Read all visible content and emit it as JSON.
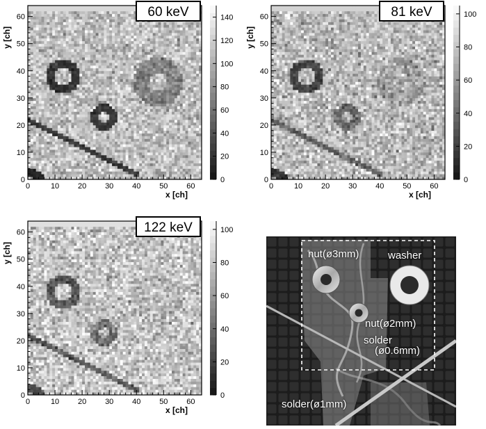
{
  "chart_data": [
    {
      "type": "heatmap",
      "energy_label": "60 keV",
      "xlabel": "x [ch]",
      "ylabel": "y [ch]",
      "xlim": [
        0,
        64
      ],
      "ylim": [
        0,
        64
      ],
      "x_ticks": [
        "0",
        "10",
        "20",
        "30",
        "40",
        "50",
        "60"
      ],
      "y_ticks": [
        "0",
        "10",
        "20",
        "30",
        "40",
        "50",
        "60"
      ],
      "colorbar_ticks": [
        "0",
        "20",
        "40",
        "60",
        "80",
        "100",
        "120",
        "140"
      ],
      "z_range": [
        0,
        150
      ],
      "background_level": 110,
      "features": [
        {
          "name": "nut(ø3mm)",
          "shape": "ring",
          "center": [
            13,
            38
          ],
          "inner_radius": 3,
          "outer_radius": 6.5,
          "level": 22
        },
        {
          "name": "nut(ø2mm)",
          "shape": "ring",
          "center": [
            28,
            23
          ],
          "inner_radius": 1.8,
          "outer_radius": 4.8,
          "level": 25
        },
        {
          "name": "washer",
          "shape": "ring",
          "center": [
            48,
            36
          ],
          "inner_radius": 3.5,
          "outer_radius": 9,
          "level": 70
        },
        {
          "name": "solder(ø0.6mm)",
          "shape": "line",
          "from": [
            0,
            22
          ],
          "to": [
            40,
            2
          ],
          "width": 1,
          "level": 25
        },
        {
          "name": "corner",
          "shape": "line",
          "from": [
            0,
            3
          ],
          "to": [
            5,
            1
          ],
          "width": 1.5,
          "level": 10
        }
      ]
    },
    {
      "type": "heatmap",
      "energy_label": "81 keV",
      "xlabel": "x [ch]",
      "ylabel": "y [ch]",
      "xlim": [
        0,
        64
      ],
      "ylim": [
        0,
        64
      ],
      "x_ticks": [
        "0",
        "10",
        "20",
        "30",
        "40",
        "50",
        "60"
      ],
      "y_ticks": [
        "0",
        "10",
        "20",
        "30",
        "40",
        "50",
        "60"
      ],
      "colorbar_ticks": [
        "0",
        "20",
        "40",
        "60",
        "80",
        "100"
      ],
      "z_range": [
        0,
        105
      ],
      "background_level": 75,
      "features": [
        {
          "name": "nut(ø3mm)",
          "shape": "ring",
          "center": [
            13,
            38
          ],
          "inner_radius": 3,
          "outer_radius": 6.5,
          "level": 22
        },
        {
          "name": "nut(ø2mm)",
          "shape": "ring",
          "center": [
            28,
            23
          ],
          "inner_radius": 1.8,
          "outer_radius": 4.8,
          "level": 40
        },
        {
          "name": "washer",
          "shape": "ring",
          "center": [
            48,
            36
          ],
          "inner_radius": 3.5,
          "outer_radius": 9,
          "level": 62
        },
        {
          "name": "solder(ø0.6mm)",
          "shape": "line",
          "from": [
            0,
            22
          ],
          "to": [
            40,
            2
          ],
          "width": 1,
          "level": 35
        },
        {
          "name": "corner",
          "shape": "line",
          "from": [
            0,
            3
          ],
          "to": [
            5,
            1
          ],
          "width": 1.5,
          "level": 15
        }
      ]
    },
    {
      "type": "heatmap",
      "energy_label": "122 keV",
      "xlabel": "x [ch]",
      "ylabel": "y [ch]",
      "xlim": [
        0,
        64
      ],
      "ylim": [
        0,
        64
      ],
      "x_ticks": [
        "0",
        "10",
        "20",
        "30",
        "40",
        "50",
        "60"
      ],
      "y_ticks": [
        "0",
        "10",
        "20",
        "30",
        "40",
        "50",
        "60"
      ],
      "colorbar_ticks": [
        "0",
        "20",
        "40",
        "60",
        "80",
        "100"
      ],
      "z_range": [
        0,
        105
      ],
      "background_level": 80,
      "features": [
        {
          "name": "nut(ø3mm)",
          "shape": "ring",
          "center": [
            13,
            38
          ],
          "inner_radius": 3,
          "outer_radius": 6.5,
          "level": 32
        },
        {
          "name": "nut(ø2mm)",
          "shape": "ring",
          "center": [
            28,
            23
          ],
          "inner_radius": 1.8,
          "outer_radius": 4.8,
          "level": 45
        },
        {
          "name": "washer",
          "shape": "ring",
          "center": [
            48,
            36
          ],
          "inner_radius": 3.5,
          "outer_radius": 9,
          "level": 74
        },
        {
          "name": "solder(ø0.6mm)",
          "shape": "line",
          "from": [
            0,
            22
          ],
          "to": [
            40,
            2
          ],
          "width": 1,
          "level": 32
        },
        {
          "name": "corner",
          "shape": "line",
          "from": [
            0,
            3
          ],
          "to": [
            5,
            1
          ],
          "width": 1.5,
          "level": 25
        }
      ]
    }
  ],
  "photo": {
    "labels": {
      "nut3": "nut(ø3mm)",
      "washer": "washer",
      "nut2": "nut(ø2mm)",
      "solder06_line1": "solder",
      "solder06_line2": "(ø0.6mm)",
      "solder1": "solder(ø1mm)"
    }
  }
}
